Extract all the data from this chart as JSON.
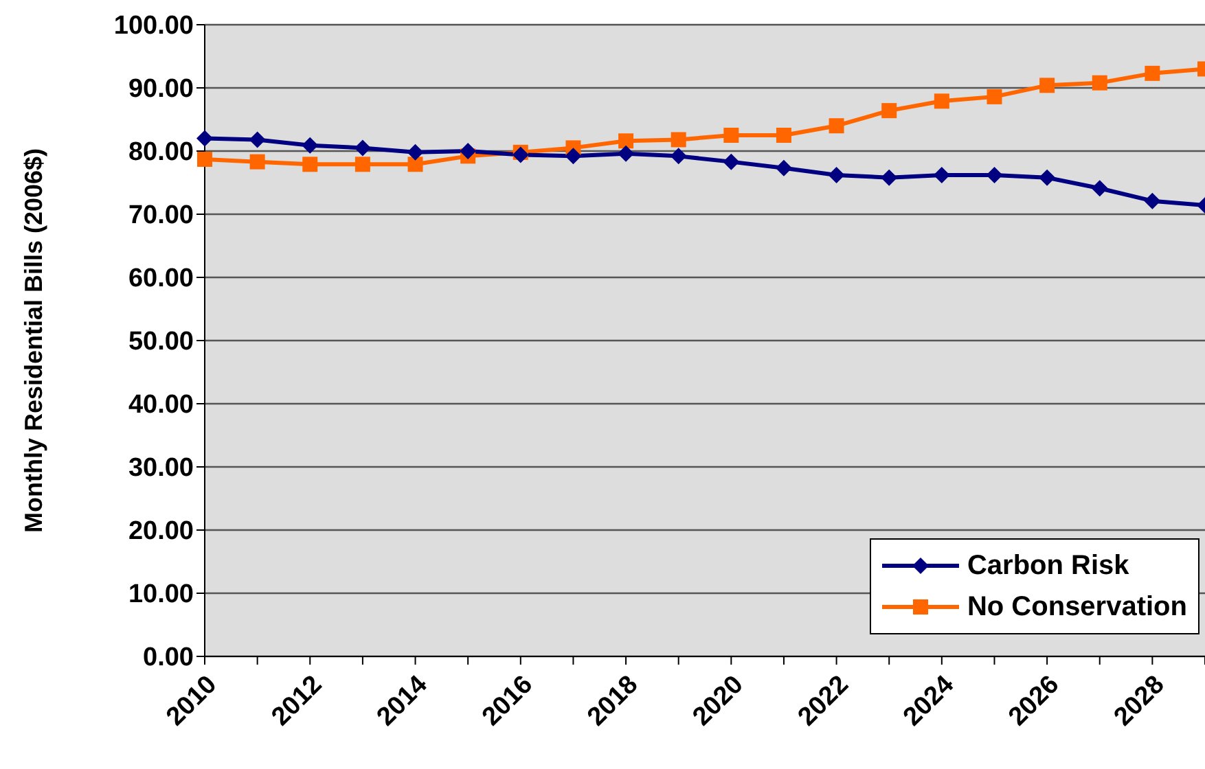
{
  "chart_data": {
    "type": "line",
    "ylabel": "Monthly Residential Bills (2006$)",
    "categories": [
      "2010",
      null,
      "2012",
      null,
      "2014",
      null,
      "2016",
      null,
      "2018",
      null,
      "2020",
      null,
      "2022",
      null,
      "2024",
      null,
      "2026",
      null,
      "2028",
      null
    ],
    "series": [
      {
        "name": "Carbon Risk",
        "color": "#000080",
        "marker": "diamond",
        "values": [
          82.0,
          81.8,
          80.9,
          80.5,
          79.8,
          80.0,
          79.4,
          79.2,
          79.6,
          79.2,
          78.3,
          77.3,
          76.2,
          75.8,
          76.2,
          76.2,
          75.8,
          74.1,
          72.1,
          71.4
        ]
      },
      {
        "name": "No Conservation",
        "color": "#ff6600",
        "marker": "square",
        "values": [
          78.7,
          78.3,
          77.9,
          77.9,
          77.9,
          79.2,
          79.8,
          80.5,
          81.6,
          81.8,
          82.5,
          82.5,
          84.0,
          86.4,
          87.9,
          88.6,
          90.4,
          90.8,
          92.3,
          93.0
        ]
      }
    ],
    "ylim": [
      0,
      100
    ],
    "yticks": [
      {
        "value": 0,
        "label": "0.00"
      },
      {
        "value": 10,
        "label": "10.00"
      },
      {
        "value": 20,
        "label": "20.00"
      },
      {
        "value": 30,
        "label": "30.00"
      },
      {
        "value": 40,
        "label": "40.00"
      },
      {
        "value": 50,
        "label": "50.00"
      },
      {
        "value": 60,
        "label": "60.00"
      },
      {
        "value": 70,
        "label": "70.00"
      },
      {
        "value": 80,
        "label": "80.00"
      },
      {
        "value": 90,
        "label": "90.00"
      },
      {
        "value": 100,
        "label": "100.00"
      }
    ],
    "grid": "y",
    "legend": "bottom right",
    "line_style": "solid"
  }
}
